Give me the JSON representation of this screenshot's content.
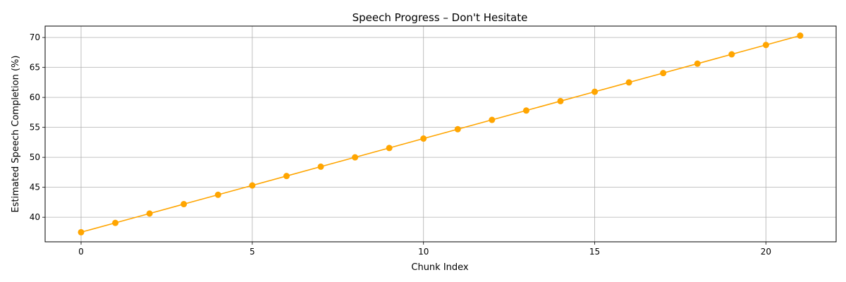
{
  "chart_data": {
    "type": "line",
    "title": "Speech Progress – Don't Hesitate",
    "xlabel": "Chunk Index",
    "ylabel": "Estimated Speech Completion (%)",
    "xlim": [
      -1.05,
      22.05
    ],
    "ylim": [
      35.9,
      71.9
    ],
    "xticks": [
      0,
      5,
      10,
      15,
      20
    ],
    "yticks": [
      40,
      45,
      50,
      55,
      60,
      65,
      70
    ],
    "grid": true,
    "color": "#FFA500",
    "marker": "circle",
    "x": [
      0,
      1,
      2,
      3,
      4,
      5,
      6,
      7,
      8,
      9,
      10,
      11,
      12,
      13,
      14,
      15,
      16,
      17,
      18,
      19,
      20,
      21
    ],
    "values": [
      37.5,
      39.06,
      40.62,
      42.19,
      43.75,
      45.31,
      46.88,
      48.44,
      50.0,
      51.56,
      53.13,
      54.69,
      56.25,
      57.81,
      59.38,
      60.94,
      62.5,
      64.06,
      65.63,
      67.19,
      68.75,
      70.31
    ]
  }
}
